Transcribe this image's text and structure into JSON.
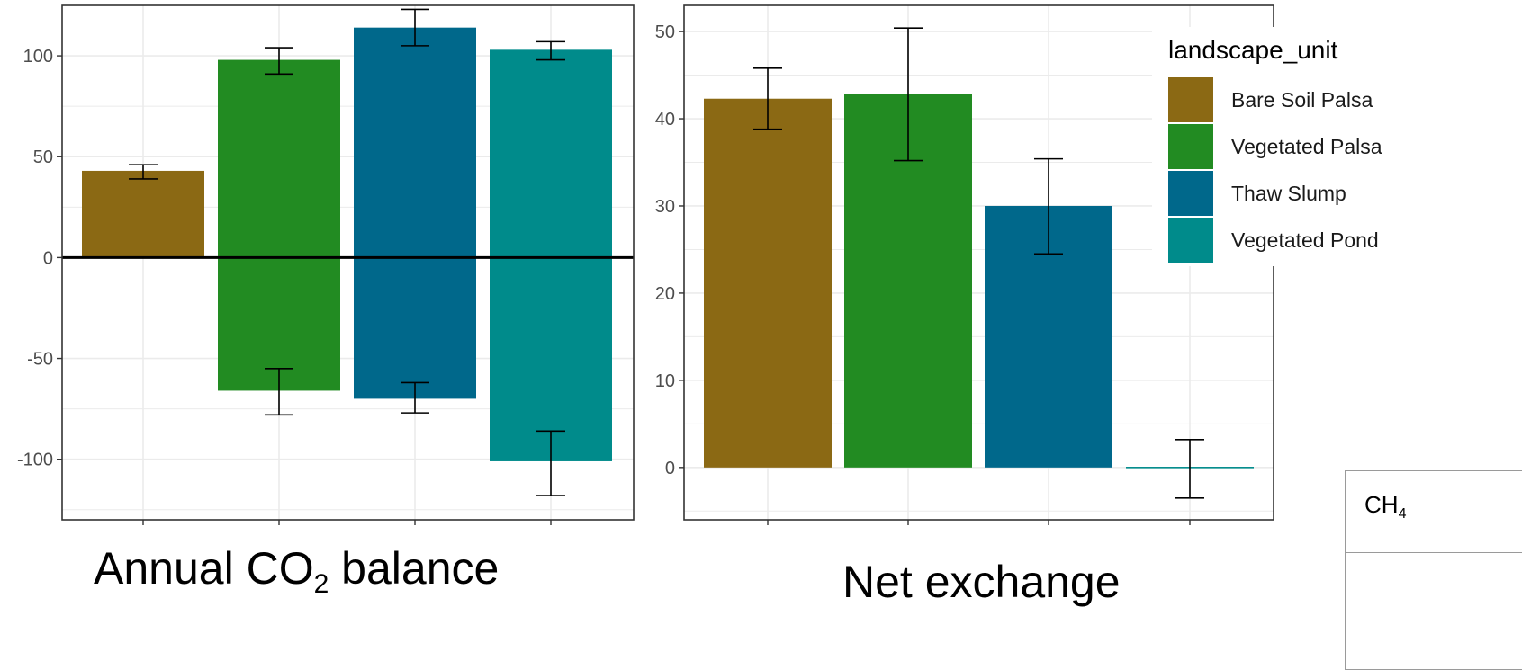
{
  "captions": {
    "left_pre": "Annual CO",
    "left_sub": "2",
    "left_post": " balance",
    "right": "Net exchange"
  },
  "edge_label": {
    "pre": "CH",
    "sub": "4"
  },
  "colors": {
    "Bare Soil Palsa": "#8b6914",
    "Vegetated Palsa": "#228b22",
    "Thaw Slump": "#00688b",
    "Vegetated Pond": "#008b8b",
    "grid": "#ebebeb",
    "axis": "#333333"
  },
  "chart_data": [
    {
      "type": "bar",
      "title": "",
      "xlabel": "",
      "ylabel": "",
      "ylim": [
        -130,
        125
      ],
      "yticks": [
        -100,
        -50,
        0,
        50,
        100
      ],
      "zero_line": true,
      "categories": [
        "Bare Soil Palsa",
        "Vegetated Palsa",
        "Thaw Slump",
        "Vegetated Pond"
      ],
      "series": [
        {
          "values": [
            43,
            98,
            114,
            103
          ],
          "err_low": [
            39,
            91,
            105,
            98
          ],
          "err_high": [
            46,
            104,
            123,
            107
          ]
        },
        {
          "values": [
            0,
            -66,
            -70,
            -101
          ],
          "err_low": [
            0,
            -78,
            -77,
            -118
          ],
          "err_high": [
            0,
            -55,
            -62,
            -86
          ]
        }
      ],
      "grid": true
    },
    {
      "type": "bar",
      "title": "",
      "xlabel": "",
      "ylabel": "",
      "ylim": [
        -6,
        53
      ],
      "yticks": [
        0,
        10,
        20,
        30,
        40,
        50
      ],
      "categories": [
        "Bare Soil Palsa",
        "Vegetated Palsa",
        "Thaw Slump",
        "Vegetated Pond"
      ],
      "values": [
        42.3,
        42.8,
        30,
        0
      ],
      "err_low": [
        38.8,
        35.2,
        24.5,
        -3.5
      ],
      "err_high": [
        45.8,
        50.4,
        35.4,
        3.2
      ],
      "grid": true,
      "legend": {
        "title": "landscape_unit",
        "position": "top-right",
        "entries": [
          "Bare Soil Palsa",
          "Vegetated Palsa",
          "Thaw Slump",
          "Vegetated Pond"
        ]
      }
    }
  ]
}
